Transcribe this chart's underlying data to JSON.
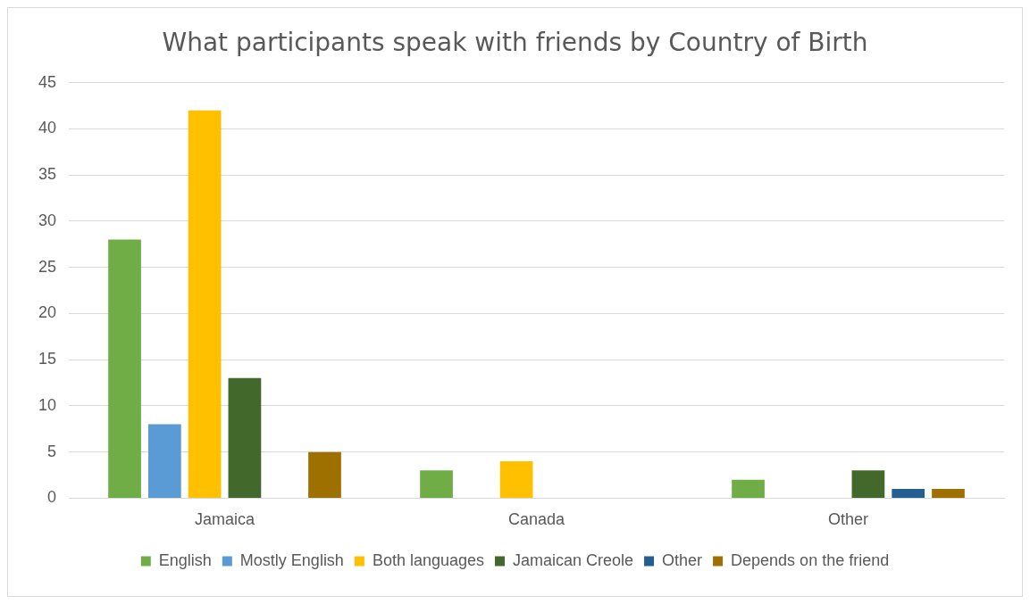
{
  "chart_data": {
    "type": "bar",
    "title": "What participants speak with friends by Country of Birth",
    "categories": [
      "Jamaica",
      "Canada",
      "Other"
    ],
    "series": [
      {
        "name": "English",
        "color": "#70ad47",
        "values": [
          28,
          3,
          2
        ]
      },
      {
        "name": "Mostly English",
        "color": "#5b9bd5",
        "values": [
          8,
          0,
          0
        ]
      },
      {
        "name": "Both languages",
        "color": "#ffc000",
        "values": [
          42,
          4,
          0
        ]
      },
      {
        "name": "Jamaican Creole",
        "color": "#43682b",
        "values": [
          13,
          0,
          3
        ]
      },
      {
        "name": "Other",
        "color": "#255e91",
        "values": [
          0,
          0,
          1
        ]
      },
      {
        "name": "Depends on the friend",
        "color": "#9e7000",
        "values": [
          5,
          0,
          1
        ]
      }
    ],
    "ylim": [
      0,
      45
    ],
    "yticks": [
      0,
      5,
      10,
      15,
      20,
      25,
      30,
      35,
      40,
      45
    ],
    "grid": "y",
    "legend": "bottom"
  }
}
